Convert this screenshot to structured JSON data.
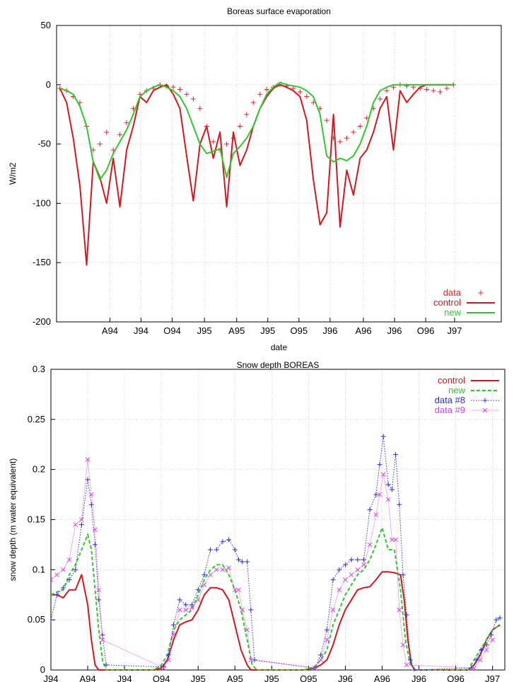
{
  "chart_data": [
    {
      "type": "line",
      "title": "Boreas surface evaporation",
      "xlabel": "date",
      "ylabel": "W/m2",
      "ylim": [
        -200,
        50
      ],
      "yticks": [
        50,
        0,
        -50,
        -100,
        -150,
        -200
      ],
      "xlim": [
        0,
        40
      ],
      "xticks": [
        {
          "label": "A94",
          "x": 4.8
        },
        {
          "label": "J94",
          "x": 7.6
        },
        {
          "label": "O94",
          "x": 10.4
        },
        {
          "label": "J95",
          "x": 13.3
        },
        {
          "label": "A95",
          "x": 16.2
        },
        {
          "label": "J95",
          "x": 19.0
        },
        {
          "label": "O95",
          "x": 21.8
        },
        {
          "label": "J96",
          "x": 24.6
        },
        {
          "label": "A96",
          "x": 27.6
        },
        {
          "label": "J96",
          "x": 30.4
        },
        {
          "label": "O96",
          "x": 33.2
        },
        {
          "label": "J97",
          "x": 35.8
        }
      ],
      "grid": true,
      "legend_position": "bottom-right",
      "series": [
        {
          "name": "data",
          "style": "points-plus",
          "color": "#e8202a",
          "x": [
            0.3,
            0.9,
            1.5,
            2.1,
            2.7,
            3.3,
            3.9,
            4.5,
            5.1,
            5.7,
            6.3,
            6.9,
            7.5,
            8.1,
            8.7,
            9.3,
            9.9,
            10.5,
            11.1,
            11.7,
            12.3,
            12.9,
            13.5,
            14.1,
            14.7,
            15.3,
            15.9,
            16.5,
            17.1,
            17.7,
            18.3,
            18.9,
            19.5,
            20.1,
            20.7,
            21.3,
            21.9,
            22.5,
            23.1,
            23.7,
            24.3,
            24.9,
            25.5,
            26.1,
            26.7,
            27.3,
            27.9,
            28.5,
            29.1,
            29.7,
            30.3,
            30.9,
            31.5,
            32.1,
            32.7,
            33.3,
            33.9,
            34.5,
            35.1,
            35.7
          ],
          "y": [
            -3,
            -5,
            -10,
            -15,
            -35,
            -55,
            -50,
            -40,
            -55,
            -42,
            -32,
            -20,
            -8,
            -5,
            -3,
            0,
            -1,
            -2,
            -4,
            -8,
            -12,
            -20,
            -35,
            -48,
            -55,
            -50,
            -45,
            -35,
            -25,
            -15,
            -8,
            -4,
            -2,
            0,
            -1,
            -3,
            -6,
            -10,
            -15,
            -20,
            -30,
            -45,
            -48,
            -45,
            -40,
            -35,
            -28,
            -20,
            -12,
            -5,
            -2,
            0,
            -1,
            -2,
            -3,
            -4,
            -5,
            -6,
            -3,
            0
          ]
        },
        {
          "name": "control",
          "style": "line",
          "color": "#d9141c",
          "x": [
            0.3,
            0.9,
            1.5,
            2.1,
            2.7,
            3.3,
            3.9,
            4.5,
            5.1,
            5.7,
            6.3,
            6.9,
            7.5,
            8.1,
            8.7,
            9.3,
            9.9,
            10.5,
            11.1,
            11.7,
            12.3,
            12.9,
            13.5,
            14.1,
            14.7,
            15.3,
            15.9,
            16.5,
            17.1,
            17.7,
            18.3,
            18.9,
            19.5,
            20.1,
            20.7,
            21.3,
            21.9,
            22.5,
            23.1,
            23.7,
            24.3,
            24.9,
            25.5,
            26.1,
            26.7,
            27.3,
            27.9,
            28.5,
            29.1,
            29.7,
            30.3,
            30.9,
            31.5,
            32.1,
            32.7,
            33.3,
            33.9,
            34.5,
            35.1,
            35.7
          ],
          "y": [
            -3,
            -15,
            -45,
            -85,
            -152,
            -65,
            -78,
            -100,
            -62,
            -103,
            -55,
            -35,
            -10,
            -15,
            -5,
            -2,
            0,
            -8,
            -20,
            -60,
            -98,
            -50,
            -35,
            -62,
            -40,
            -103,
            -40,
            -68,
            -55,
            -35,
            -20,
            -10,
            -3,
            0,
            -2,
            -5,
            -10,
            -30,
            -80,
            -118,
            -108,
            -25,
            -120,
            -72,
            -93,
            -62,
            -55,
            -40,
            -20,
            -10,
            -55,
            -5,
            -15,
            -8,
            -2,
            0,
            0,
            0,
            0,
            0
          ]
        },
        {
          "name": "new",
          "style": "line",
          "color": "#2ec82e",
          "x": [
            0.3,
            0.9,
            1.5,
            2.1,
            2.7,
            3.3,
            3.9,
            4.5,
            5.1,
            5.7,
            6.3,
            6.9,
            7.5,
            8.1,
            8.7,
            9.3,
            9.9,
            10.5,
            11.1,
            11.7,
            12.3,
            12.9,
            13.5,
            14.1,
            14.7,
            15.3,
            15.9,
            16.5,
            17.1,
            17.7,
            18.3,
            18.9,
            19.5,
            20.1,
            20.7,
            21.3,
            21.9,
            22.5,
            23.1,
            23.7,
            24.3,
            24.9,
            25.5,
            26.1,
            26.7,
            27.3,
            27.9,
            28.5,
            29.1,
            29.7,
            30.3,
            30.9,
            31.5,
            32.1,
            32.7,
            33.3,
            33.9,
            34.5,
            35.1,
            35.7
          ],
          "y": [
            -3,
            -5,
            -8,
            -18,
            -35,
            -65,
            -80,
            -72,
            -58,
            -48,
            -38,
            -25,
            -10,
            -5,
            -2,
            0,
            -2,
            -5,
            -10,
            -20,
            -35,
            -50,
            -58,
            -56,
            -54,
            -78,
            -58,
            -52,
            -45,
            -35,
            -20,
            -8,
            -2,
            2,
            0,
            -1,
            -2,
            -5,
            -10,
            -25,
            -60,
            -65,
            -62,
            -64,
            -60,
            -50,
            -35,
            -15,
            -5,
            -2,
            0,
            0,
            0,
            0,
            0,
            0,
            0,
            0,
            0,
            0
          ]
        }
      ]
    },
    {
      "type": "line",
      "title": "Snow depth BOREAS",
      "xlabel": "",
      "ylabel": "snow depth (m water equivalent)",
      "ylim": [
        0,
        0.3
      ],
      "yticks": [
        0,
        0.05,
        0.1,
        0.15,
        0.2,
        0.25,
        0.3
      ],
      "xlim": [
        0,
        37
      ],
      "xticks": [
        {
          "label": "J94",
          "x": 0
        },
        {
          "label": "A94",
          "x": 3
        },
        {
          "label": "J94",
          "x": 6
        },
        {
          "label": "O94",
          "x": 9
        },
        {
          "label": "J95",
          "x": 12
        },
        {
          "label": "A95",
          "x": 15
        },
        {
          "label": "J95",
          "x": 18
        },
        {
          "label": "O95",
          "x": 21
        },
        {
          "label": "J96",
          "x": 24
        },
        {
          "label": "A96",
          "x": 27
        },
        {
          "label": "J96",
          "x": 30
        },
        {
          "label": "O96",
          "x": 33
        },
        {
          "label": "J97",
          "x": 36
        }
      ],
      "grid": true,
      "legend_position": "top-right",
      "series": [
        {
          "name": "control",
          "style": "line",
          "color": "#d9141c",
          "x": [
            0.0,
            0.5,
            1.0,
            1.5,
            2.0,
            2.5,
            3.0,
            3.3,
            3.6,
            3.9,
            4.2,
            4.5,
            8.4,
            9.0,
            9.5,
            10.0,
            10.5,
            11.0,
            11.5,
            12.0,
            12.5,
            13.0,
            13.5,
            14.0,
            14.5,
            15.0,
            15.5,
            16.0,
            16.3,
            16.6,
            17.0,
            20.6,
            21.5,
            22.0,
            22.5,
            23.0,
            23.5,
            24.0,
            24.5,
            25.0,
            25.5,
            26.0,
            26.5,
            27.0,
            27.5,
            28.0,
            28.5,
            28.8,
            29.1,
            29.4,
            29.7,
            30.0,
            34.0,
            34.5,
            35.0,
            35.5,
            36.0,
            36.6
          ],
          "y": [
            0.075,
            0.075,
            0.072,
            0.08,
            0.08,
            0.095,
            0.065,
            0.03,
            0.005,
            0,
            0,
            0,
            0,
            0.002,
            0.01,
            0.03,
            0.045,
            0.048,
            0.05,
            0.06,
            0.075,
            0.082,
            0.082,
            0.08,
            0.07,
            0.045,
            0.02,
            0.005,
            0,
            0,
            0,
            0,
            0.002,
            0.005,
            0.01,
            0.025,
            0.045,
            0.06,
            0.07,
            0.08,
            0.082,
            0.083,
            0.09,
            0.098,
            0.098,
            0.097,
            0.095,
            0.07,
            0.03,
            0.005,
            0,
            0,
            0,
            0.005,
            0.015,
            0.03,
            0.04,
            0.045
          ]
        },
        {
          "name": "new",
          "style": "dashed",
          "color": "#2ec82e",
          "x": [
            0.0,
            0.5,
            1.0,
            1.5,
            2.0,
            2.5,
            3.0,
            3.3,
            3.6,
            3.9,
            4.2,
            4.5,
            8.4,
            9.0,
            9.5,
            10.0,
            10.5,
            11.0,
            11.5,
            12.0,
            12.5,
            13.0,
            13.5,
            14.0,
            14.5,
            15.0,
            15.5,
            16.0,
            16.4,
            16.8,
            17.2,
            20.6,
            21.5,
            22.0,
            22.5,
            23.0,
            23.5,
            24.0,
            24.5,
            25.0,
            25.5,
            26.0,
            26.5,
            27.0,
            27.5,
            28.0,
            28.5,
            28.9,
            29.3,
            29.7,
            30.0,
            34.0,
            34.5,
            35.0,
            35.5,
            36.0,
            36.6
          ],
          "y": [
            0.075,
            0.078,
            0.08,
            0.095,
            0.105,
            0.12,
            0.135,
            0.12,
            0.08,
            0.04,
            0.01,
            0,
            0,
            0.005,
            0.015,
            0.04,
            0.05,
            0.055,
            0.06,
            0.075,
            0.09,
            0.1,
            0.105,
            0.105,
            0.095,
            0.08,
            0.06,
            0.03,
            0.005,
            0,
            0,
            0,
            0.003,
            0.01,
            0.02,
            0.045,
            0.06,
            0.075,
            0.085,
            0.095,
            0.1,
            0.11,
            0.125,
            0.142,
            0.12,
            0.12,
            0.08,
            0.03,
            0.005,
            0,
            0,
            0,
            0.01,
            0.02,
            0.03,
            0.04,
            0.045
          ]
        },
        {
          "name": "data #8",
          "style": "dotted-plus",
          "color": "#2b2bd8",
          "x": [
            0.0,
            0.5,
            1.0,
            1.5,
            2.0,
            2.5,
            3.0,
            3.3,
            3.6,
            3.9,
            4.2,
            4.5,
            9.2,
            9.6,
            10.0,
            10.5,
            11.0,
            11.5,
            12.0,
            12.5,
            13.0,
            13.5,
            14.0,
            14.5,
            15.0,
            15.3,
            15.6,
            16.0,
            16.3,
            16.6,
            21.5,
            22.0,
            22.5,
            23.0,
            23.5,
            24.0,
            24.5,
            25.0,
            25.5,
            26.0,
            26.5,
            26.8,
            27.1,
            27.5,
            27.8,
            28.1,
            28.4,
            28.7,
            29.0,
            29.3,
            29.6,
            34.3,
            34.7,
            35.1,
            35.5,
            35.9,
            36.3,
            36.6
          ],
          "y": [
            0.05,
            0.075,
            0.082,
            0.09,
            0.1,
            0.145,
            0.19,
            0.165,
            0.125,
            0.07,
            0.035,
            0.005,
            0.003,
            0.015,
            0.045,
            0.07,
            0.065,
            0.065,
            0.08,
            0.095,
            0.12,
            0.12,
            0.128,
            0.13,
            0.12,
            0.11,
            0.108,
            0.108,
            0.06,
            0.01,
            0.002,
            0.015,
            0.04,
            0.09,
            0.1,
            0.105,
            0.11,
            0.11,
            0.11,
            0.16,
            0.175,
            0.205,
            0.233,
            0.185,
            0.18,
            0.215,
            0.165,
            0.095,
            0.055,
            0.01,
            0,
            0.002,
            0.01,
            0.02,
            0.025,
            0.035,
            0.05,
            0.052
          ]
        },
        {
          "name": "data #9",
          "style": "points-x",
          "color": "#e040e0",
          "x": [
            0.0,
            0.5,
            1.0,
            1.5,
            2.0,
            2.5,
            3.0,
            3.3,
            3.6,
            3.9,
            4.2,
            9.2,
            9.6,
            10.0,
            10.5,
            11.0,
            11.5,
            12.0,
            12.5,
            13.0,
            13.5,
            14.0,
            14.5,
            15.0,
            15.3,
            15.6,
            16.0,
            16.3,
            21.5,
            22.0,
            22.5,
            23.0,
            23.5,
            24.0,
            24.5,
            25.0,
            25.5,
            26.0,
            26.5,
            26.8,
            27.1,
            27.5,
            27.8,
            28.1,
            28.4,
            28.7,
            29.0,
            34.5,
            35.0,
            35.5,
            36.0
          ],
          "y": [
            0.09,
            0.095,
            0.1,
            0.11,
            0.145,
            0.15,
            0.21,
            0.175,
            0.14,
            0.08,
            0.03,
            0.002,
            0.01,
            0.035,
            0.06,
            0.06,
            0.062,
            0.07,
            0.085,
            0.095,
            0.1,
            0.1,
            0.102,
            0.08,
            0.08,
            0.06,
            0.04,
            0.01,
            0.002,
            0.01,
            0.03,
            0.06,
            0.08,
            0.09,
            0.095,
            0.1,
            0.105,
            0.125,
            0.155,
            0.175,
            0.195,
            0.17,
            0.13,
            0.13,
            0.06,
            0.025,
            0.005,
            0.002,
            0.01,
            0.02,
            0.03
          ]
        }
      ]
    }
  ]
}
